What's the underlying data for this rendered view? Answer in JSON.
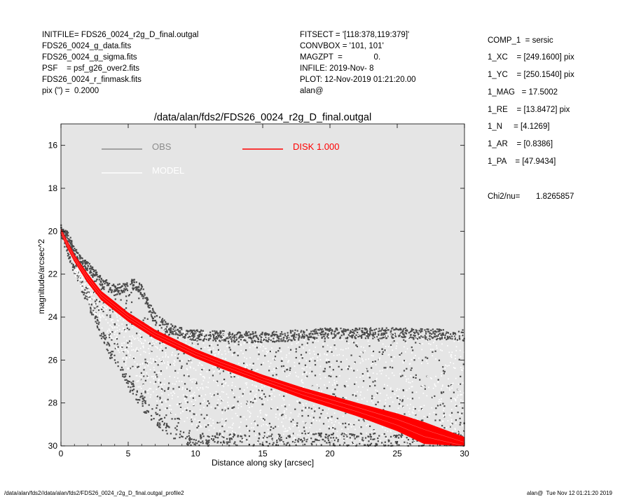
{
  "header_left": [
    "INITFILE= FDS26_0024_r2g_D_final.outgal",
    "FDS26_0024_g_data.fits",
    "FDS26_0024_g_sigma.fits",
    "PSF    = psf_g26_over2.fits",
    "FDS26_0024_r_finmask.fits",
    "pix (\") =  0.2000"
  ],
  "header_mid": [
    "FITSECT = '[118:378,119:379]'",
    "CONVBOX = '101, 101'",
    "MAGZPT  =              0.",
    "INFILE: 2019-Nov- 8",
    "PLOT: 12-Nov-2019 01:21:20.00",
    "alan@"
  ],
  "params": [
    "COMP_1  = sersic",
    "1_XC    = [249.1600] pix",
    "1_YC    = [250.1540] pix",
    "1_MAG   = 17.5002",
    "1_RE    = [13.8472] pix",
    "1_N     = [4.1269]",
    "1_AR    = [0.8386]",
    "1_PA    = [47.9434]"
  ],
  "chi2_label": "Chi2/nu=",
  "chi2_value": "1.8265857",
  "footer_left": "/data/alan/fds2//data/alan/fds2/FDS26_0024_r2g_D_final.outgal_profile2",
  "footer_right": "alan@  Tue Nov 12 01:21:20 2019",
  "colors": {
    "plot_bg": "#e5e5e5",
    "obs": "#4a4a4a",
    "obs_legend": "#8c8c8c",
    "model": "#ffffff",
    "disk": "#ff0000"
  },
  "chart_data": {
    "type": "scatter",
    "title": "/data/alan/fds2/FDS26_0024_r2g_D_final.outgal",
    "xlabel": "Distance along sky [arcsec]",
    "ylabel": "magnitude/arcsec^2",
    "xlim": [
      0,
      30
    ],
    "ylim": [
      30,
      15
    ],
    "y_inverted": true,
    "x_ticks": [
      0,
      5,
      10,
      15,
      20,
      25,
      30
    ],
    "y_ticks": [
      16,
      18,
      20,
      22,
      24,
      26,
      28,
      30
    ],
    "grid": false,
    "legend": [
      {
        "name": "OBS",
        "color": "#8c8c8c"
      },
      {
        "name": "MODEL",
        "color": "#ffffff"
      },
      {
        "name": "DISK  1.000",
        "color": "#ff0000"
      }
    ],
    "legend_position": "top",
    "series": [
      {
        "name": "DISK  1.000",
        "kind": "band",
        "x": [
          0,
          0.5,
          1,
          2,
          3,
          4,
          5,
          6,
          7,
          8,
          10,
          12,
          15,
          18,
          20,
          22,
          25,
          27,
          30
        ],
        "y_bright": [
          19.9,
          20.5,
          21.1,
          22.0,
          22.8,
          23.3,
          23.8,
          24.2,
          24.6,
          24.9,
          25.5,
          26.0,
          26.7,
          27.3,
          27.65,
          28.0,
          28.5,
          28.9,
          29.6
        ],
        "y_faint": [
          20.1,
          20.8,
          21.4,
          22.4,
          23.2,
          23.7,
          24.2,
          24.6,
          25.0,
          25.3,
          25.9,
          26.4,
          27.1,
          27.8,
          28.2,
          28.6,
          29.3,
          29.9,
          30.3
        ]
      },
      {
        "name": "OBS",
        "kind": "scatter",
        "upper_envelope_x": [
          0,
          0.5,
          1,
          1.5,
          2,
          3,
          4,
          5,
          5.5,
          6,
          6.5,
          7,
          8,
          10,
          15,
          20,
          25,
          30
        ],
        "upper_envelope_y": [
          19.8,
          20.0,
          20.7,
          21.2,
          21.4,
          22.1,
          22.5,
          22.3,
          22.2,
          22.5,
          23.2,
          23.8,
          24.3,
          24.6,
          24.7,
          24.5,
          24.5,
          24.6
        ],
        "lower_envelope_x": [
          0,
          0.5,
          1,
          2,
          3,
          4,
          5,
          6,
          7,
          8,
          9,
          10,
          12,
          15,
          20,
          25,
          30
        ],
        "lower_envelope_y": [
          20.2,
          21.2,
          22.0,
          23.5,
          25.0,
          26.4,
          27.4,
          28.3,
          29.0,
          29.6,
          29.9,
          30.0,
          30.0,
          30.0,
          30.0,
          30.0,
          30.0
        ]
      },
      {
        "name": "MODEL",
        "kind": "scatter",
        "upper_envelope_x": [
          1,
          3,
          6,
          10,
          15,
          20,
          25,
          30
        ],
        "upper_envelope_y": [
          21.5,
          23.0,
          24.3,
          24.7,
          24.8,
          24.8,
          24.8,
          24.8
        ],
        "lower_envelope_x": [
          1,
          3,
          6,
          10,
          15,
          20,
          25,
          30
        ],
        "lower_envelope_y": [
          22.0,
          24.5,
          27.5,
          29.3,
          30.0,
          30.0,
          30.0,
          30.0
        ]
      }
    ]
  }
}
